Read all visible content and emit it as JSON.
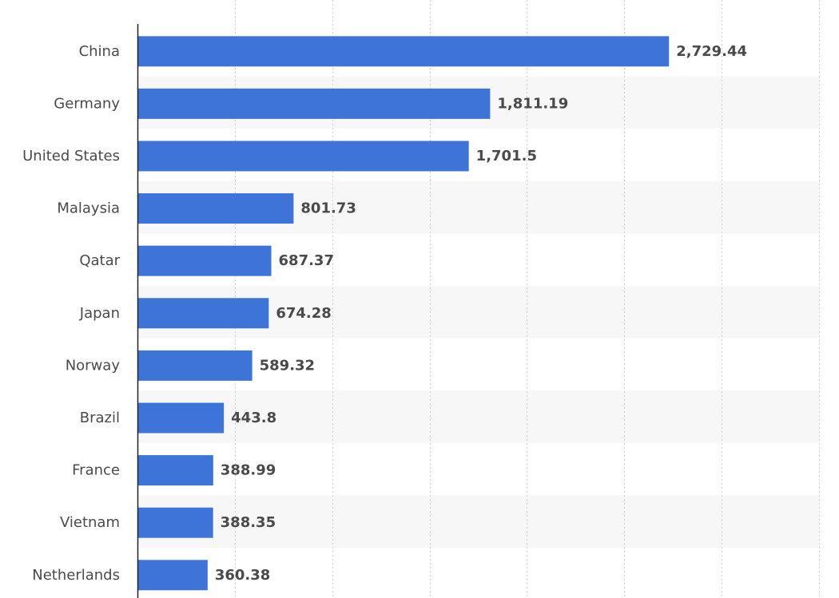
{
  "chart_data": {
    "type": "bar",
    "orientation": "horizontal",
    "categories": [
      "China",
      "Germany",
      "United States",
      "Malaysia",
      "Qatar",
      "Japan",
      "Norway",
      "Brazil",
      "France",
      "Vietnam",
      "Netherlands"
    ],
    "values": [
      2729.44,
      1811.19,
      1701.5,
      801.73,
      687.37,
      674.28,
      589.32,
      443.8,
      388.99,
      388.35,
      360.38
    ],
    "value_labels": [
      "2,729.44",
      "1,811.19",
      "1,701.5",
      "801.73",
      "687.37",
      "674.28",
      "589.32",
      "443.8",
      "388.99",
      "388.35",
      "360.38"
    ],
    "xlim": [
      0,
      3500
    ],
    "x_gridline_step": 500,
    "grid": true,
    "gridline_style": "dotted",
    "alternating_row_shading": true,
    "legend": "none",
    "colors": {
      "bar": "#3e74d8",
      "row_alt": "#f7f7f7",
      "grid": "#cfcfcf",
      "axis": "#222222",
      "text": "#4a4a4a"
    }
  }
}
